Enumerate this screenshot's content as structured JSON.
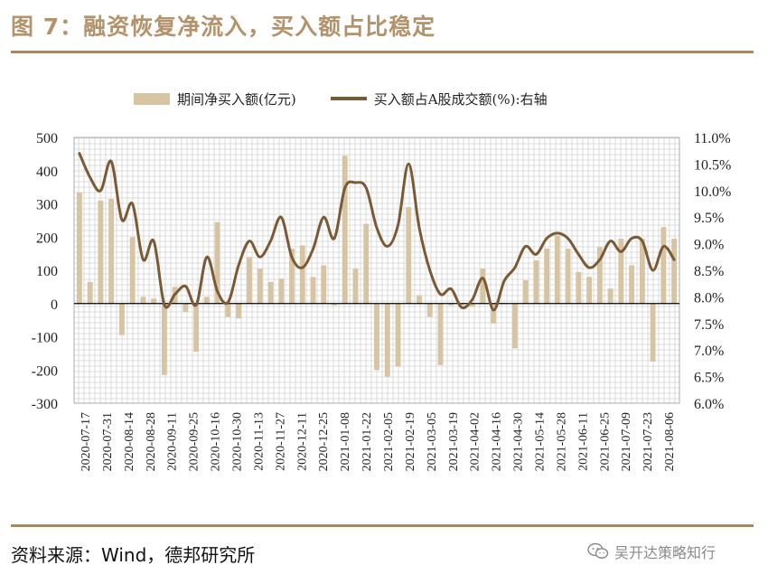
{
  "header": {
    "title": "图 7：融资恢复净流入，买入额占比稳定"
  },
  "footer": {
    "source": "资料来源：Wind，德邦研究所",
    "watermark": "吴开达策略知行",
    "watermark_icon": "wechat-icon"
  },
  "colors": {
    "accent": "#a9885f",
    "bar": "#d7c4a2",
    "line": "#7a5a35",
    "grid_hatch": "#cfcfcf"
  },
  "chart_data": {
    "type": "bar",
    "title": "",
    "legend": [
      {
        "name": "期间净买入额(亿元)",
        "kind": "bar"
      },
      {
        "name": "买入额占A股成交额(%):右轴",
        "kind": "line"
      }
    ],
    "legend_position": "top",
    "grid": "hatched",
    "ylim": [
      -300,
      500
    ],
    "y_ticks": [
      "500",
      "400",
      "300",
      "200",
      "100",
      "0",
      "-100",
      "-200",
      "-300"
    ],
    "y_tick_values": [
      500,
      400,
      300,
      200,
      100,
      0,
      -100,
      -200,
      -300
    ],
    "y2lim": [
      6.0,
      11.0
    ],
    "y2_ticks": [
      "11.0%",
      "10.5%",
      "10.0%",
      "9.5%",
      "9.0%",
      "8.5%",
      "8.0%",
      "7.5%",
      "7.0%",
      "6.5%",
      "6.0%"
    ],
    "y2_tick_values": [
      11.0,
      10.5,
      10.0,
      9.5,
      9.0,
      8.5,
      8.0,
      7.5,
      7.0,
      6.5,
      6.0
    ],
    "x_tick_labels": [
      "2020-07-17",
      "2020-07-31",
      "2020-08-14",
      "2020-08-28",
      "2020-09-11",
      "2020-09-25",
      "2020-10-16",
      "2020-10-30",
      "2020-11-13",
      "2020-11-27",
      "2020-12-11",
      "2020-12-25",
      "2021-01-08",
      "2021-01-22",
      "2021-02-05",
      "2021-02-19",
      "2021-03-05",
      "2021-03-19",
      "2021-04-02",
      "2021-04-16",
      "2021-04-30",
      "2021-05-14",
      "2021-05-28",
      "2021-06-11",
      "2021-06-25",
      "2021-07-09",
      "2021-07-23",
      "2021-08-06"
    ],
    "series": [
      {
        "name": "期间净买入额(亿元)",
        "axis": "left",
        "values": [
          335,
          65,
          310,
          315,
          -95,
          200,
          20,
          15,
          -215,
          50,
          -25,
          -145,
          20,
          245,
          -40,
          -45,
          140,
          105,
          65,
          75,
          165,
          175,
          80,
          115,
          -5,
          445,
          105,
          240,
          -200,
          -220,
          -190,
          290,
          25,
          -40,
          -185,
          -5,
          -5,
          -10,
          105,
          -60,
          0,
          -135,
          70,
          130,
          165,
          205,
          165,
          95,
          80,
          170,
          45,
          195,
          115,
          195,
          -175,
          230,
          195
        ]
      },
      {
        "name": "买入额占A股成交额(%):右轴",
        "axis": "right",
        "values": [
          10.7,
          10.25,
          10.0,
          10.55,
          9.45,
          9.75,
          8.7,
          9.05,
          7.85,
          8.05,
          8.2,
          7.85,
          8.75,
          8.1,
          7.9,
          8.6,
          9.05,
          8.75,
          9.05,
          9.5,
          8.75,
          8.55,
          8.9,
          9.5,
          9.1,
          10.05,
          10.15,
          10.05,
          9.3,
          8.95,
          9.35,
          10.5,
          9.3,
          8.5,
          8.05,
          8.15,
          7.8,
          7.95,
          8.35,
          7.75,
          8.3,
          8.55,
          8.95,
          8.8,
          9.1,
          9.2,
          9.1,
          8.8,
          8.55,
          8.7,
          9.05,
          8.85,
          9.1,
          9.05,
          8.5,
          8.95,
          8.7
        ]
      }
    ]
  }
}
